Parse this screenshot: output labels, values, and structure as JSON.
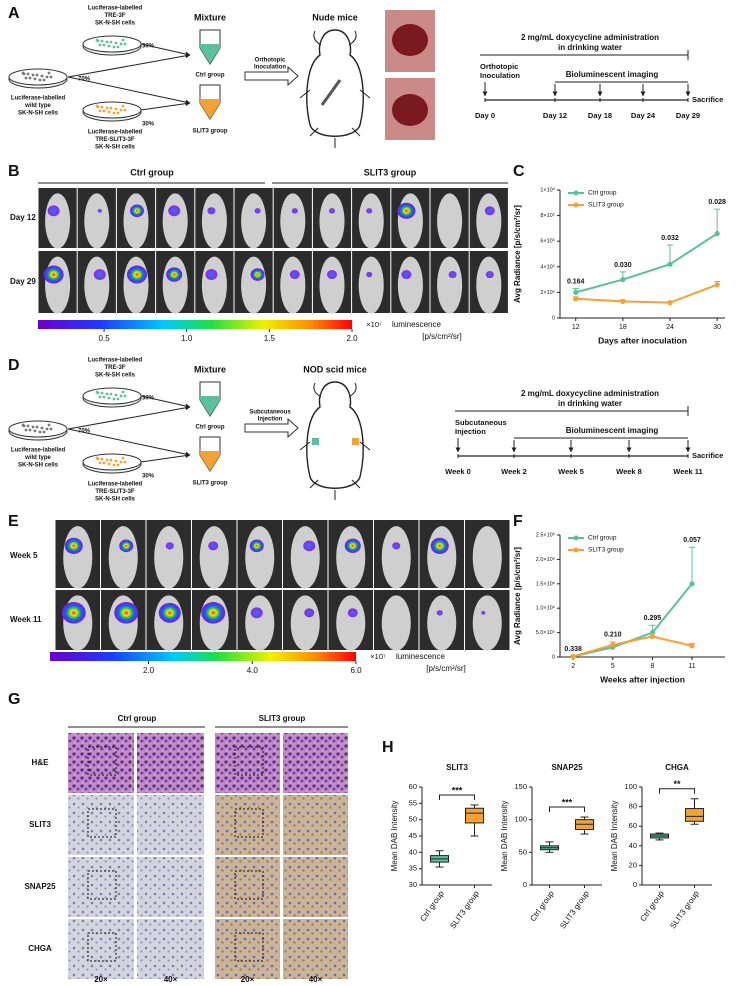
{
  "panel_a": {
    "label": "A",
    "top_dish": [
      "Luciferase-labelled",
      "TRE-3F",
      "SK-N-SH cells"
    ],
    "top_ratio": "30%",
    "left_dish": [
      "Luciferase-labelled",
      "wild type",
      "SK-N-SH cells"
    ],
    "left_ratio": "70%",
    "bottom_dish": [
      "Luciferase-labelled",
      "TRE-SLIT3-3F",
      "SK-N-SH cells"
    ],
    "bottom_ratio": "30%",
    "mixture": "Mixture",
    "ctrl_tube": "Ctrl group",
    "slit3_tube": "SLIT3 group",
    "method": [
      "Orthotopic",
      "Inoculation"
    ],
    "model": "Nude mice",
    "treatment": [
      "2 mg/mL doxycycline administration",
      "in drinking water"
    ],
    "start": [
      "Orthotopic",
      "Inoculation"
    ],
    "imaging": "Bioluminescent imaging",
    "timepoints": [
      "Day 0",
      "Day 12",
      "Day 18",
      "Day 24",
      "Day 29"
    ],
    "end": "Sacrifice"
  },
  "panel_b": {
    "label": "B",
    "groups": [
      "Ctrl group",
      "SLIT3 group"
    ],
    "rows": [
      "Day 12",
      "Day 29"
    ],
    "colorbar": {
      "lim": [
        0.1,
        2.0
      ],
      "ticks": [
        0.5,
        {
          "value": 1,
          "label": "1.0"
        },
        1.5,
        {
          "value": 2,
          "label": "2.0"
        }
      ],
      "multiplier": "×10⁷",
      "unit": "luminescence",
      "unit_detail": "[p/s/cm²/sr]"
    }
  },
  "panel_d": {
    "label": "D",
    "top_dish": [
      "Luciferase-labelled",
      "TRE-3F",
      "SK-N-SH cells"
    ],
    "top_ratio": "30%",
    "left_dish": [
      "Luciferase-labelled",
      "wild type",
      "SK-N-SH cells"
    ],
    "left_ratio": "70%",
    "bottom_dish": [
      "Luciferase-labelled",
      "TRE-SLIT3-3F",
      "SK-N-SH cells"
    ],
    "bottom_ratio": "30%",
    "mixture": "Mixture",
    "ctrl_tube": "Ctrl group",
    "slit3_tube": "SLIT3 group",
    "method": [
      "Subcutaneous",
      "Injection"
    ],
    "model": "NOD scid mice",
    "treatment": [
      "2 mg/mL doxycycline administration",
      "in drinking water"
    ],
    "start": [
      "Subcutaneous",
      "Injection"
    ],
    "imaging": "Bioluminescent imaging",
    "timepoints": [
      "Week 0",
      "Week 2",
      "Week 5",
      "Week 8",
      "Week 11"
    ],
    "end": "Sacrifice"
  },
  "panel_e": {
    "label": "E",
    "rows": [
      "Week 5",
      "Week 11"
    ],
    "colorbar": {
      "lim": [
        0.1,
        6.0
      ],
      "ticks": [
        {
          "value": 2,
          "label": "2.0"
        },
        {
          "value": 4,
          "label": "4.0"
        },
        {
          "value": 6,
          "label": "6.0"
        }
      ],
      "multiplier": "×10⁷",
      "unit": "luminescence",
      "unit_detail": "[p/s/cm²/sr]"
    }
  },
  "panel_g": {
    "label": "G",
    "groups": [
      "Ctrl group",
      "SLIT3 group"
    ],
    "rows": [
      "H&E",
      "SLIT3",
      "SNAP25",
      "CHGA"
    ],
    "magnifications": [
      "20×",
      "40×",
      "20×",
      "40×"
    ]
  },
  "panel_h": {
    "label": "H"
  },
  "chart_data": [
    {
      "type": "line",
      "label": "C",
      "x": [
        12,
        18,
        24,
        30
      ],
      "xlim": [
        10,
        31
      ],
      "xticks": [
        12,
        18,
        24,
        30
      ],
      "ylim": [
        0,
        1000000
      ],
      "yticks": [
        0,
        {
          "value": 200000,
          "label": "2×10⁵"
        },
        {
          "value": 400000,
          "label": "4×10⁵"
        },
        {
          "value": 600000,
          "label": "6×10⁵"
        },
        {
          "value": 800000,
          "label": "8×10⁵"
        },
        {
          "value": 1000000,
          "label": "1×10⁶"
        }
      ],
      "xlabel": "Days after inoculation",
      "ylabel": "Avg Radiance [p/s/cm²/sr]",
      "series": [
        {
          "name": "Ctrl group",
          "color": "#5cbf9e",
          "values": [
            200000,
            300000,
            420000,
            660000
          ],
          "errors": [
            30000,
            60000,
            150000,
            190000
          ]
        },
        {
          "name": "SLIT3 group",
          "color": "#f5a133",
          "values": [
            150000,
            130000,
            120000,
            260000
          ],
          "errors": [
            15000,
            12000,
            5000,
            25000
          ]
        }
      ],
      "p_values": [
        "0.164",
        "0.030",
        "0.032",
        "0.028"
      ]
    },
    {
      "type": "line",
      "label": "F",
      "x": [
        2,
        5,
        8,
        11
      ],
      "xlim": [
        1,
        13.5
      ],
      "xticks": [
        2,
        5,
        8,
        11
      ],
      "ylim": [
        0,
        2500000
      ],
      "yticks": [
        0,
        {
          "value": 500000,
          "label": "5.0×10⁵"
        },
        {
          "value": 1000000,
          "label": "1.0×10⁶"
        },
        {
          "value": 1500000,
          "label": "1.5×10⁶"
        },
        {
          "value": 2000000,
          "label": "2.0×10⁶"
        },
        {
          "value": 2500000,
          "label": "2.5×10⁶"
        }
      ],
      "xlabel": "Weeks after injection",
      "ylabel": "Avg Radiance [p/s/cm²/sr]",
      "series": [
        {
          "name": "Ctrl group",
          "color": "#5cbf9e",
          "values": [
            10000,
            200000,
            500000,
            1500000
          ],
          "errors": [
            10000,
            50000,
            150000,
            750000
          ]
        },
        {
          "name": "SLIT3 group",
          "color": "#f5a133",
          "values": [
            10000,
            250000,
            420000,
            230000
          ],
          "errors": [
            5000,
            60000,
            60000,
            50000
          ]
        }
      ],
      "p_values": [
        "0.338",
        "0.210",
        "0.295",
        "0.057"
      ]
    },
    {
      "type": "box",
      "title": "SLIT3",
      "ylabel": "Mean DAB Intensity",
      "categories": [
        "Ctrl group",
        "SLIT3 group"
      ],
      "colors": [
        "#5cbf9e",
        "#f5a133"
      ],
      "boxes": [
        {
          "min": 35.5,
          "q1": 37,
          "median": 38,
          "q3": 39,
          "max": 40.5
        },
        {
          "min": 45,
          "q1": 49,
          "median": 52,
          "q3": 53.5,
          "max": 54.5
        }
      ],
      "ylim": [
        30,
        60
      ],
      "yticks": [
        30,
        35,
        40,
        45,
        50,
        55,
        60
      ],
      "significance": "***"
    },
    {
      "type": "box",
      "title": "SNAP25",
      "ylabel": "Mean DAB Intensity",
      "categories": [
        "Ctrl group",
        "SLIT3 group"
      ],
      "colors": [
        "#5cbf9e",
        "#f5a133"
      ],
      "boxes": [
        {
          "min": 50,
          "q1": 54,
          "median": 57,
          "q3": 60,
          "max": 66
        },
        {
          "min": 78,
          "q1": 85,
          "median": 93,
          "q3": 100,
          "max": 104
        }
      ],
      "ylim": [
        0,
        150
      ],
      "yticks": [
        0,
        50,
        100,
        150
      ],
      "significance": "***"
    },
    {
      "type": "box",
      "title": "CHGA",
      "ylabel": "Mean DAB Intensity",
      "categories": [
        "Ctrl group",
        "SLIT3 group"
      ],
      "colors": [
        "#5cbf9e",
        "#f5a133"
      ],
      "boxes": [
        {
          "min": 46,
          "q1": 48,
          "median": 50,
          "q3": 52,
          "max": 53
        },
        {
          "min": 62,
          "q1": 65,
          "median": 70,
          "q3": 78,
          "max": 88
        }
      ],
      "ylim": [
        0,
        100
      ],
      "yticks": [
        0,
        20,
        40,
        60,
        80,
        100
      ],
      "significance": "**"
    }
  ]
}
